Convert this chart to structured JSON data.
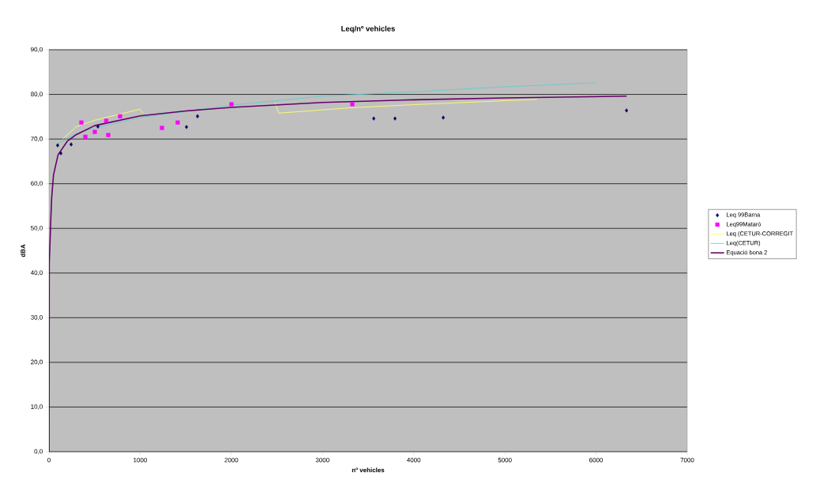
{
  "chart_data": {
    "type": "scatter",
    "title": "Leq/nº vehicles",
    "xlabel": "nº vehicles",
    "ylabel": "dBA",
    "xlim": [
      0,
      7000
    ],
    "ylim": [
      0,
      90
    ],
    "xticks": [
      0,
      1000,
      2000,
      3000,
      4000,
      5000,
      6000,
      7000
    ],
    "yticks": [
      {
        "value": 0,
        "label": "0,0"
      },
      {
        "value": 10,
        "label": "10,0"
      },
      {
        "value": 20,
        "label": "20,0"
      },
      {
        "value": 30,
        "label": "30,0"
      },
      {
        "value": 40,
        "label": "40,0"
      },
      {
        "value": 50,
        "label": "50,0"
      },
      {
        "value": 60,
        "label": "60,0"
      },
      {
        "value": 70,
        "label": "70,0"
      },
      {
        "value": 80,
        "label": "80,0"
      },
      {
        "value": 90,
        "label": "90,0"
      }
    ],
    "grid": "y",
    "legend": "right",
    "series": [
      {
        "name": "Leq 99Barna",
        "marker": "diamond",
        "color": "#000066",
        "x": [
          95,
          130,
          243,
          537,
          1508,
          1629,
          3562,
          3795,
          4324,
          6334
        ],
        "values": [
          68.6,
          66.8,
          68.8,
          72.8,
          72.7,
          75.1,
          74.6,
          74.6,
          74.8,
          76.4
        ]
      },
      {
        "name": "Leq99Mataró",
        "marker": "square",
        "color": "#ff00ff",
        "x": [
          355,
          399,
          503,
          628,
          650,
          780,
          1239,
          1412,
          2002,
          3327
        ],
        "values": [
          73.7,
          70.5,
          71.6,
          74.1,
          70.9,
          75.1,
          72.5,
          73.7,
          77.8,
          77.8
        ]
      },
      {
        "name": "Leq (CETUR-CORREGIT",
        "type": "line",
        "color": "#ffff66",
        "x": [
          150,
          300,
          500,
          800,
          1000,
          1030,
          1500,
          2480,
          2520,
          3300,
          4000,
          5355
        ],
        "values": [
          70.0,
          72.8,
          74.2,
          75.7,
          76.7,
          75.8,
          null,
          78.1,
          75.8,
          77.0,
          77.7,
          78.9
        ]
      },
      {
        "name": "Leq(CETUR)",
        "type": "line",
        "color": "#66cccc",
        "x": [
          100,
          300,
          500,
          1000,
          2000,
          3000,
          4000,
          5000,
          5988
        ],
        "values": [
          69.0,
          71.2,
          72.5,
          74.8,
          77.6,
          79.6,
          80.6,
          81.7,
          82.6
        ]
      },
      {
        "name": "Equació bona 2",
        "type": "line",
        "color": "#660066",
        "x": [
          1,
          3,
          20,
          30,
          50,
          100,
          200,
          300,
          500,
          1000,
          1500,
          2000,
          3000,
          4000,
          5000,
          6335
        ],
        "values": [
          0,
          42,
          52,
          57,
          62,
          66.5,
          69.5,
          71,
          73,
          75.2,
          76.3,
          77.1,
          78.2,
          78.8,
          79.2,
          79.6
        ]
      }
    ]
  }
}
